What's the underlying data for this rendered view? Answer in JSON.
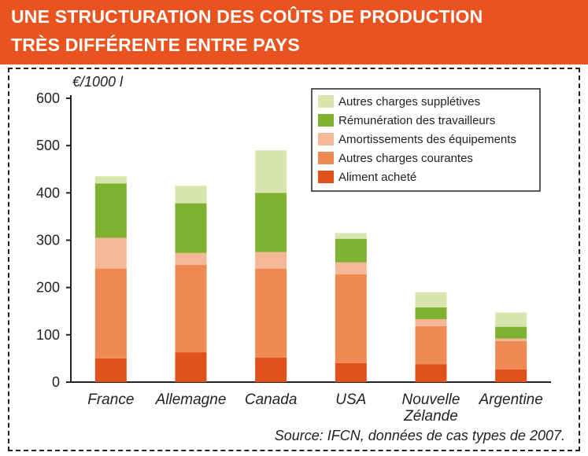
{
  "header": {
    "line1": "UNE STRUCTURATION DES COÛTS DE PRODUCTION",
    "line2": "TRÈS DIFFÉRENTE ENTRE PAYS"
  },
  "chart_data": {
    "type": "bar",
    "stacked": true,
    "unit_label": "€/1000 l",
    "categories": [
      "France",
      "Allemagne",
      "Canada",
      "USA",
      "Nouvelle Zélande",
      "Argentine"
    ],
    "category_lines": [
      [
        "France"
      ],
      [
        "Allemagne"
      ],
      [
        "Canada"
      ],
      [
        "USA"
      ],
      [
        "Nouvelle",
        "Zélande"
      ],
      [
        "Argentine"
      ]
    ],
    "series": [
      {
        "name": "Aliment acheté",
        "color": "#e0521c",
        "values": [
          50,
          63,
          52,
          40,
          38,
          27
        ]
      },
      {
        "name": "Autres charges courantes",
        "color": "#ef8a55",
        "values": [
          190,
          185,
          188,
          188,
          80,
          60
        ]
      },
      {
        "name": "Amortissements des équipements",
        "color": "#f5b896",
        "values": [
          65,
          25,
          35,
          25,
          15,
          5
        ]
      },
      {
        "name": "Rémunération des travailleurs",
        "color": "#7fb230",
        "values": [
          115,
          105,
          125,
          50,
          25,
          25
        ]
      },
      {
        "name": "Autres charges supplétives",
        "color": "#d8e6ad",
        "values": [
          15,
          37,
          90,
          12,
          32,
          30
        ]
      }
    ],
    "ylim": [
      0,
      600
    ],
    "yticks": [
      0,
      100,
      200,
      300,
      400,
      500,
      600
    ],
    "legend_position": "top-right",
    "source": "Source: IFCN, données de cas types de 2007."
  }
}
